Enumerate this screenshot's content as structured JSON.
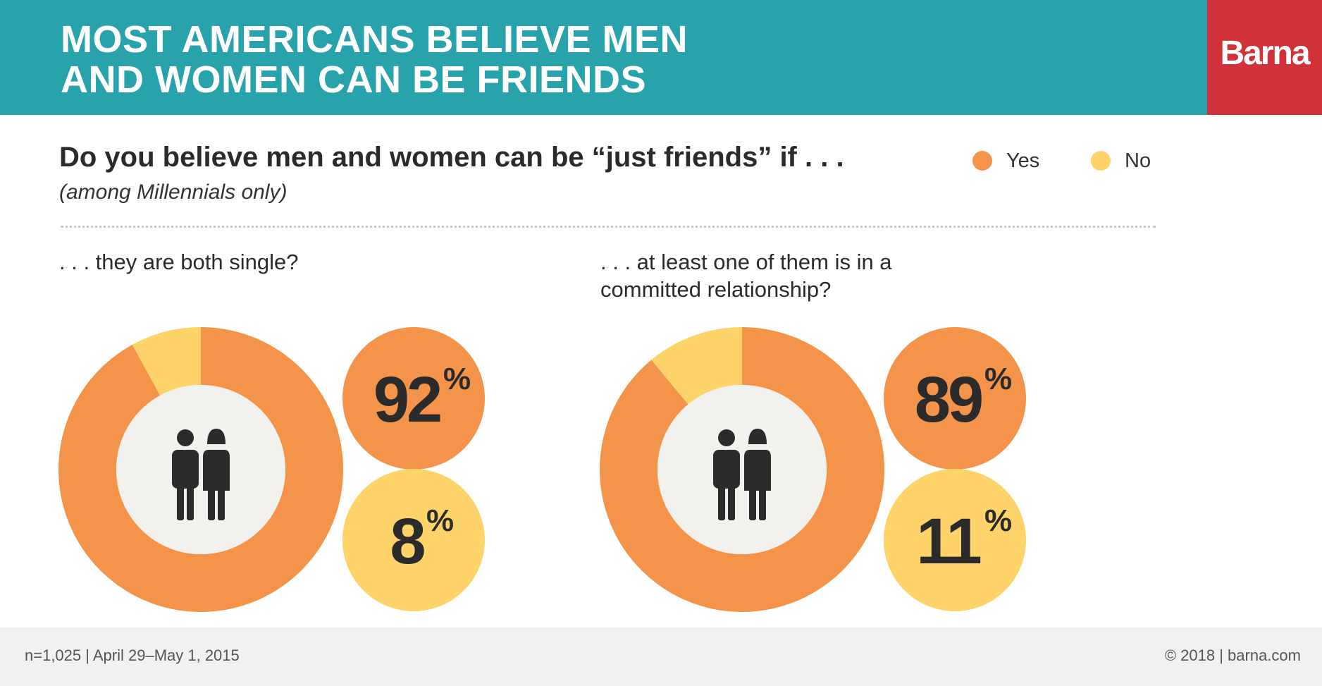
{
  "header": {
    "title": "MOST AMERICANS BELIEVE MEN\nAND WOMEN CAN BE FRIENDS",
    "logo_text": "Barna",
    "bg_color": "#29a3ab",
    "logo_color": "#d13138"
  },
  "question": "Do you believe men and women can be “just friends” if . . .",
  "subtitle": "(among Millennials only)",
  "legend": [
    {
      "label": "Yes",
      "color": "#f4944a"
    },
    {
      "label": "No",
      "color": "#fdd36a"
    }
  ],
  "chart_data": [
    {
      "type": "pie",
      "title": ". . . they are both single?",
      "icon": "two-people-icon",
      "slices": [
        {
          "name": "Yes",
          "value": 92,
          "label": "92",
          "color": "#f4944a"
        },
        {
          "name": "No",
          "value": 8,
          "label": "8",
          "color": "#fdd36a"
        }
      ],
      "unit": "%"
    },
    {
      "type": "pie",
      "title": ". . . at least one of them is in a\ncommitted relationship?",
      "icon": "two-people-icon",
      "slices": [
        {
          "name": "Yes",
          "value": 89,
          "label": "89",
          "color": "#f4944a"
        },
        {
          "name": "No",
          "value": 11,
          "label": "11",
          "color": "#fdd36a"
        }
      ],
      "unit": "%"
    }
  ],
  "footer": {
    "left": "n=1,025 | April 29–May 1, 2015",
    "right": "© 2018 | barna.com"
  }
}
